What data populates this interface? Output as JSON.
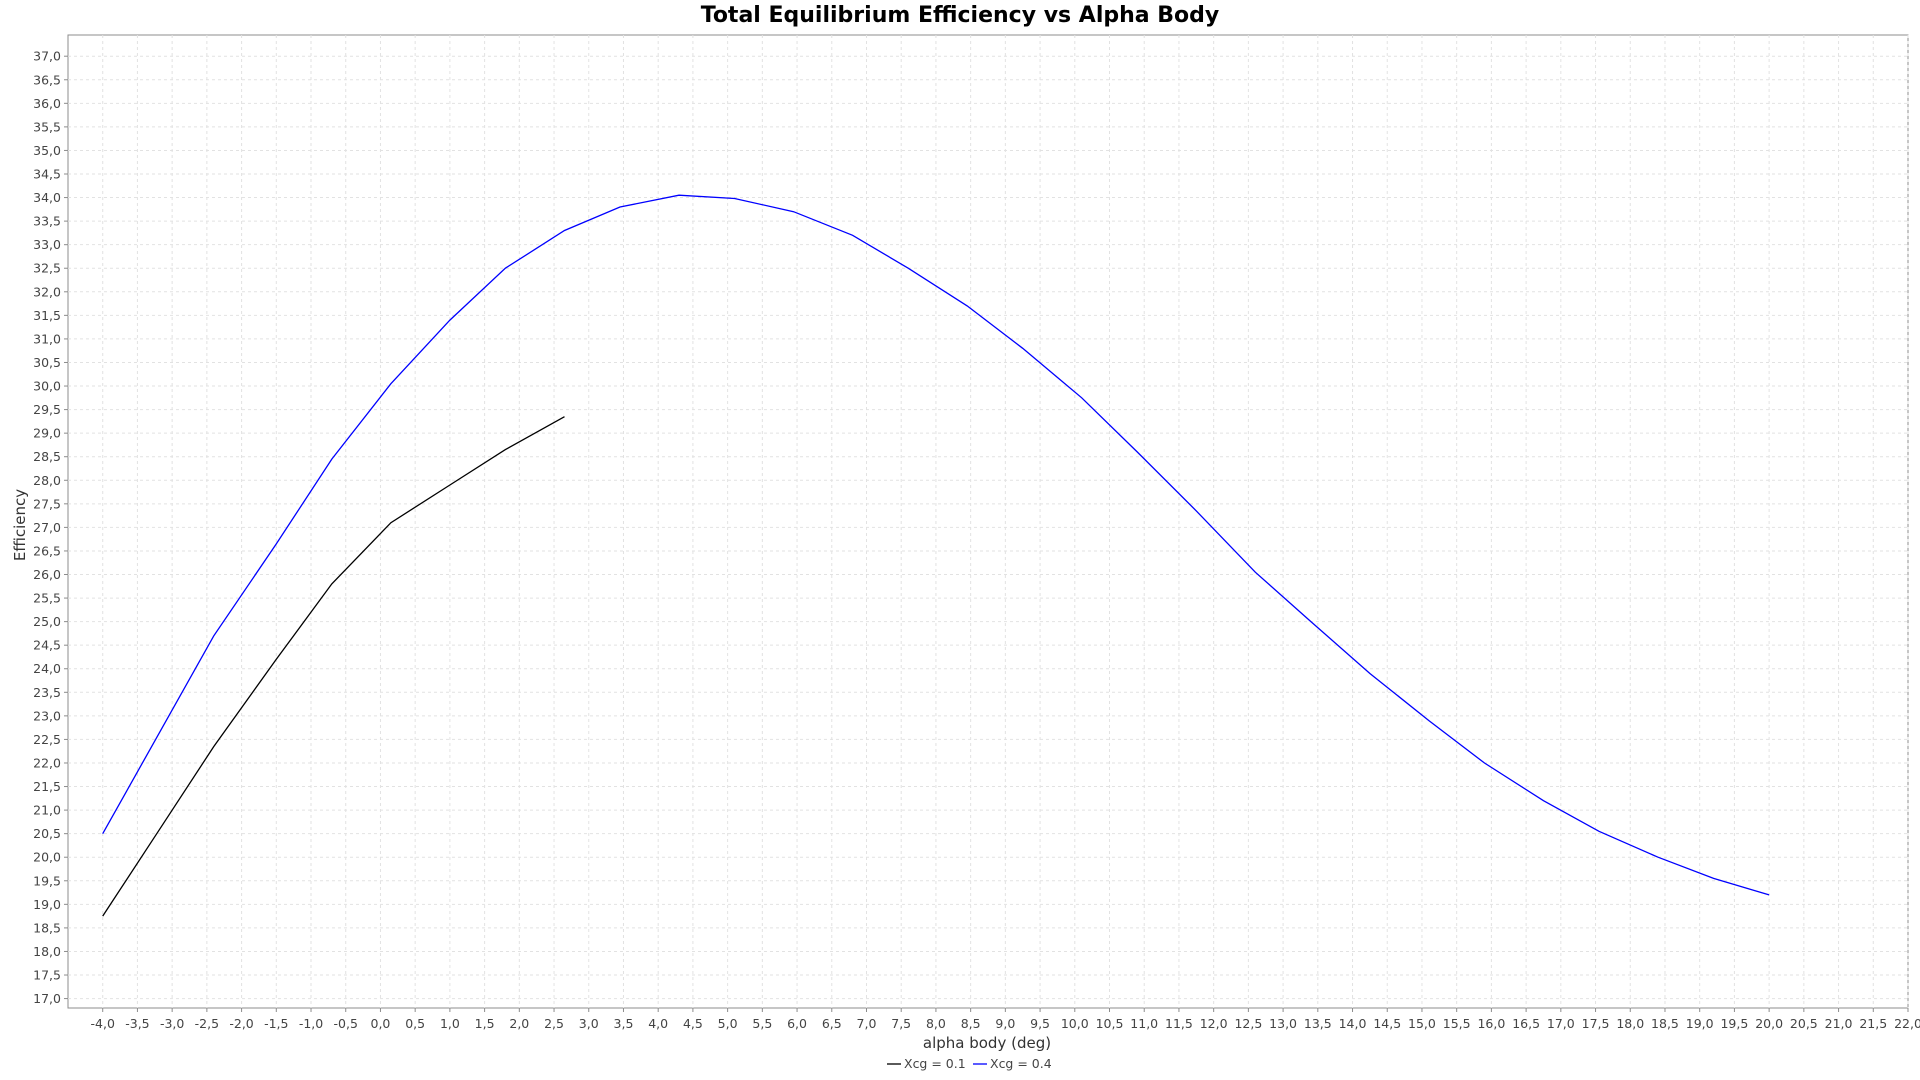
{
  "chart_data": {
    "type": "line",
    "title": "Total Equilibrium Efficiency vs Alpha Body",
    "xlabel": "alpha body (deg)",
    "ylabel": "Efficiency",
    "xlim": [
      -4.5,
      22.0
    ],
    "ylim": [
      16.8,
      37.45
    ],
    "x_ticks": [
      "-4,0",
      "-3,5",
      "-3,0",
      "-2,5",
      "-2,0",
      "-1,5",
      "-1,0",
      "-0,5",
      "0,0",
      "0,5",
      "1,0",
      "1,5",
      "2,0",
      "2,5",
      "3,0",
      "3,5",
      "4,0",
      "4,5",
      "5,0",
      "5,5",
      "6,0",
      "6,5",
      "7,0",
      "7,5",
      "8,0",
      "8,5",
      "9,0",
      "9,5",
      "10,0",
      "10,5",
      "11,0",
      "11,5",
      "12,0",
      "12,5",
      "13,0",
      "13,5",
      "14,0",
      "14,5",
      "15,0",
      "15,5",
      "16,0",
      "16,5",
      "17,0",
      "17,5",
      "18,0",
      "18,5",
      "19,0",
      "19,5",
      "20,0",
      "20,5",
      "21,0",
      "21,5",
      "22,0"
    ],
    "x_tick_values": [
      -4.0,
      -3.5,
      -3.0,
      -2.5,
      -2.0,
      -1.5,
      -1.0,
      -0.5,
      0.0,
      0.5,
      1.0,
      1.5,
      2.0,
      2.5,
      3.0,
      3.5,
      4.0,
      4.5,
      5.0,
      5.5,
      6.0,
      6.5,
      7.0,
      7.5,
      8.0,
      8.5,
      9.0,
      9.5,
      10.0,
      10.5,
      11.0,
      11.5,
      12.0,
      12.5,
      13.0,
      13.5,
      14.0,
      14.5,
      15.0,
      15.5,
      16.0,
      16.5,
      17.0,
      17.5,
      18.0,
      18.5,
      19.0,
      19.5,
      20.0,
      20.5,
      21.0,
      21.5,
      22.0
    ],
    "y_ticks": [
      "17,0",
      "17,5",
      "18,0",
      "18,5",
      "19,0",
      "19,5",
      "20,0",
      "20,5",
      "21,0",
      "21,5",
      "22,0",
      "22,5",
      "23,0",
      "23,5",
      "24,0",
      "24,5",
      "25,0",
      "25,5",
      "26,0",
      "26,5",
      "27,0",
      "27,5",
      "28,0",
      "28,5",
      "29,0",
      "29,5",
      "30,0",
      "30,5",
      "31,0",
      "31,5",
      "32,0",
      "32,5",
      "33,0",
      "33,5",
      "34,0",
      "34,5",
      "35,0",
      "35,5",
      "36,0",
      "36,5",
      "37,0"
    ],
    "y_tick_values": [
      17.0,
      17.5,
      18.0,
      18.5,
      19.0,
      19.5,
      20.0,
      20.5,
      21.0,
      21.5,
      22.0,
      22.5,
      23.0,
      23.5,
      24.0,
      24.5,
      25.0,
      25.5,
      26.0,
      26.5,
      27.0,
      27.5,
      28.0,
      28.5,
      29.0,
      29.5,
      30.0,
      30.5,
      31.0,
      31.5,
      32.0,
      32.5,
      33.0,
      33.5,
      34.0,
      34.5,
      35.0,
      35.5,
      36.0,
      36.5,
      37.0
    ],
    "grid": true,
    "legend_position": "bottom-center",
    "series": [
      {
        "name": "Xcg = 0.1",
        "color": "#000000",
        "x": [
          -4.0,
          -3.2,
          -2.4,
          -1.5,
          -0.7,
          0.15,
          1.0,
          1.8,
          2.65
        ],
        "y": [
          18.75,
          20.55,
          22.35,
          24.2,
          25.8,
          27.1,
          27.9,
          28.65,
          29.35
        ]
      },
      {
        "name": "Xcg = 0.4",
        "color": "#0000ff",
        "x": [
          -4.0,
          -3.2,
          -2.4,
          -1.5,
          -0.7,
          0.15,
          1.0,
          1.8,
          2.65,
          3.45,
          4.3,
          5.1,
          5.95,
          6.8,
          7.6,
          8.45,
          9.25,
          10.1,
          10.9,
          11.75,
          12.6,
          13.4,
          14.25,
          15.1,
          15.9,
          16.75,
          17.55,
          18.4,
          19.2,
          20.0
        ],
        "y": [
          20.5,
          22.6,
          24.7,
          26.65,
          28.45,
          30.05,
          31.4,
          32.5,
          33.3,
          33.8,
          34.05,
          33.98,
          33.7,
          33.2,
          32.5,
          31.7,
          30.8,
          29.75,
          28.6,
          27.35,
          26.05,
          25.0,
          23.9,
          22.9,
          22.0,
          21.2,
          20.55,
          20.0,
          19.55,
          19.2
        ]
      }
    ]
  }
}
